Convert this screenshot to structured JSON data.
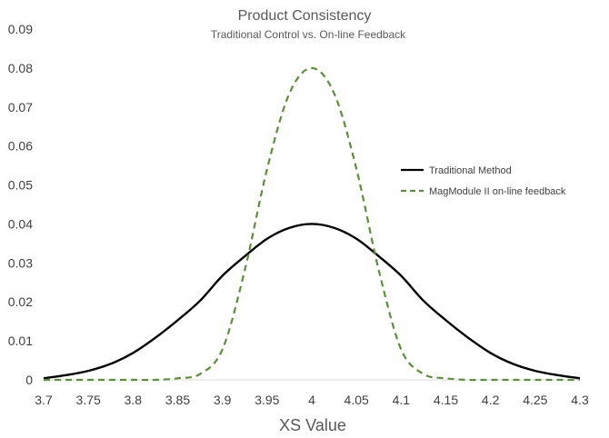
{
  "chart_data": {
    "type": "line",
    "title": "Product Consistency",
    "subtitle": "Traditional Control vs. On-line Feedback",
    "xlabel": "XS Value",
    "ylabel": "",
    "xlim": [
      3.7,
      4.3
    ],
    "ylim": [
      0,
      0.09
    ],
    "x_ticks": [
      "3.7",
      "3.75",
      "3.8",
      "3.85",
      "3.9",
      "3.95",
      "4",
      "4.05",
      "4.1",
      "4.15",
      "4.2",
      "4.25",
      "4.3"
    ],
    "y_ticks": [
      "0",
      "0.01",
      "0.02",
      "0.03",
      "0.04",
      "0.05",
      "0.06",
      "0.07",
      "0.08",
      "0.09"
    ],
    "grid": false,
    "legend_position": "right",
    "x": [
      3.7,
      3.725,
      3.75,
      3.775,
      3.8,
      3.825,
      3.85,
      3.875,
      3.9,
      3.925,
      3.95,
      3.975,
      4.0,
      4.025,
      4.05,
      4.075,
      4.1,
      4.125,
      4.15,
      4.175,
      4.2,
      4.225,
      4.25,
      4.275,
      4.3
    ],
    "series": [
      {
        "name": "Traditional Method",
        "color": "#000000",
        "style": "solid",
        "values": [
          0.0004,
          0.0012,
          0.0023,
          0.0041,
          0.0069,
          0.0108,
          0.0153,
          0.0203,
          0.0267,
          0.0317,
          0.0362,
          0.039,
          0.04,
          0.039,
          0.0362,
          0.0317,
          0.0267,
          0.0203,
          0.0153,
          0.0108,
          0.0069,
          0.0041,
          0.0023,
          0.0012,
          0.0004
        ]
      },
      {
        "name": "MagModule II on-line feedback",
        "color": "#5b8f3a",
        "style": "dashed",
        "values": [
          0.0,
          0.0,
          0.0,
          0.0,
          0.0,
          0.0,
          0.0004,
          0.0015,
          0.0078,
          0.0281,
          0.0541,
          0.0735,
          0.08,
          0.0735,
          0.0541,
          0.0281,
          0.0078,
          0.0015,
          0.0004,
          0.0,
          0.0,
          0.0,
          0.0,
          0.0,
          0.0
        ]
      }
    ]
  }
}
